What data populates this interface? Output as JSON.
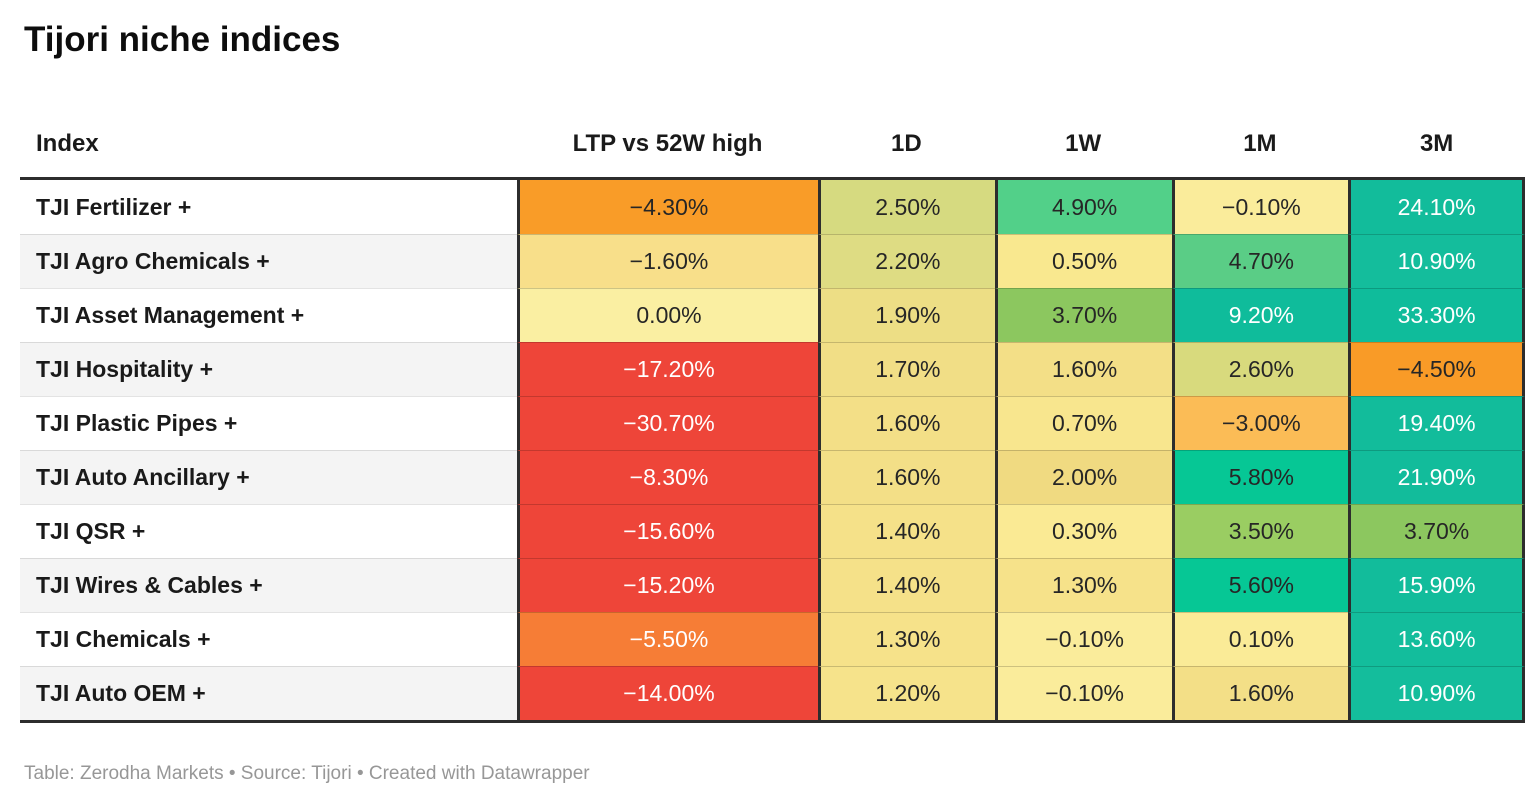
{
  "title": "Tijori niche indices",
  "footer": {
    "text": "Table: Zerodha Markets • Source: Tijori • Created with Datawrapper"
  },
  "style": {
    "zebra_color": "#f4f4f4",
    "row_white": "#ffffff",
    "frame_border_color": "#2d2d2d",
    "footer_text_color": "#979797"
  },
  "table": {
    "columns": [
      "Index",
      "LTP vs 52W high",
      "1D",
      "1W",
      "1M",
      "3M"
    ],
    "rows": [
      {
        "name": "TJI Fertilizer +",
        "cells": [
          {
            "v": "−4.30%",
            "bg": "#F99C28",
            "fg": "#262626"
          },
          {
            "v": "2.50%",
            "bg": "#D6DA80",
            "fg": "#262626"
          },
          {
            "v": "4.90%",
            "bg": "#52D089",
            "fg": "#262626"
          },
          {
            "v": "−0.10%",
            "bg": "#FAEC9B",
            "fg": "#262626"
          },
          {
            "v": "24.10%",
            "bg": "#12BC9B",
            "fg": "#FFFFFF"
          }
        ]
      },
      {
        "name": "TJI Agro Chemicals +",
        "cells": [
          {
            "v": "−1.60%",
            "bg": "#F8DF8A",
            "fg": "#262626"
          },
          {
            "v": "2.20%",
            "bg": "#DEDC83",
            "fg": "#262626"
          },
          {
            "v": "0.50%",
            "bg": "#F9E88F",
            "fg": "#262626"
          },
          {
            "v": "4.70%",
            "bg": "#5ACD86",
            "fg": "#262626"
          },
          {
            "v": "10.90%",
            "bg": "#14BD9C",
            "fg": "#FFFFFF"
          }
        ]
      },
      {
        "name": "TJI Asset Management +",
        "cells": [
          {
            "v": "0.00%",
            "bg": "#FAEFA2",
            "fg": "#262626"
          },
          {
            "v": "1.90%",
            "bg": "#EDDE85",
            "fg": "#262626"
          },
          {
            "v": "3.70%",
            "bg": "#8CC75F",
            "fg": "#262626"
          },
          {
            "v": "9.20%",
            "bg": "#0FBC9B",
            "fg": "#FFFFFF"
          },
          {
            "v": "33.30%",
            "bg": "#0FBC9B",
            "fg": "#FFFFFF"
          }
        ]
      },
      {
        "name": "TJI Hospitality +",
        "cells": [
          {
            "v": "−17.20%",
            "bg": "#EE4539",
            "fg": "#FFFFFF"
          },
          {
            "v": "1.70%",
            "bg": "#F1DE86",
            "fg": "#262626"
          },
          {
            "v": "1.60%",
            "bg": "#F3DF87",
            "fg": "#262626"
          },
          {
            "v": "2.60%",
            "bg": "#D8DA7D",
            "fg": "#262626"
          },
          {
            "v": "−4.50%",
            "bg": "#F99B27",
            "fg": "#262626"
          }
        ]
      },
      {
        "name": "TJI Plastic Pipes +",
        "cells": [
          {
            "v": "−30.70%",
            "bg": "#EE4539",
            "fg": "#FFFFFF"
          },
          {
            "v": "1.60%",
            "bg": "#F3DF87",
            "fg": "#262626"
          },
          {
            "v": "0.70%",
            "bg": "#F8E68E",
            "fg": "#262626"
          },
          {
            "v": "−3.00%",
            "bg": "#FBBC56",
            "fg": "#262626"
          },
          {
            "v": "19.40%",
            "bg": "#12BC9B",
            "fg": "#FFFFFF"
          }
        ]
      },
      {
        "name": "TJI Auto Ancillary +",
        "cells": [
          {
            "v": "−8.30%",
            "bg": "#EE4539",
            "fg": "#FFFFFF"
          },
          {
            "v": "1.60%",
            "bg": "#F3DF87",
            "fg": "#262626"
          },
          {
            "v": "2.00%",
            "bg": "#F0DA81",
            "fg": "#262626"
          },
          {
            "v": "5.80%",
            "bg": "#06C795",
            "fg": "#262626"
          },
          {
            "v": "21.90%",
            "bg": "#12BC9B",
            "fg": "#FFFFFF"
          }
        ]
      },
      {
        "name": "TJI QSR +",
        "cells": [
          {
            "v": "−15.60%",
            "bg": "#EE4539",
            "fg": "#FFFFFF"
          },
          {
            "v": "1.40%",
            "bg": "#F5E189",
            "fg": "#262626"
          },
          {
            "v": "0.30%",
            "bg": "#FAEA94",
            "fg": "#262626"
          },
          {
            "v": "3.50%",
            "bg": "#9ACD62",
            "fg": "#262626"
          },
          {
            "v": "3.70%",
            "bg": "#8CC75F",
            "fg": "#262626"
          }
        ]
      },
      {
        "name": "TJI Wires & Cables +",
        "cells": [
          {
            "v": "−15.20%",
            "bg": "#EE4539",
            "fg": "#FFFFFF"
          },
          {
            "v": "1.40%",
            "bg": "#F5E189",
            "fg": "#262626"
          },
          {
            "v": "1.30%",
            "bg": "#F6E28A",
            "fg": "#262626"
          },
          {
            "v": "5.60%",
            "bg": "#06C795",
            "fg": "#262626"
          },
          {
            "v": "15.90%",
            "bg": "#12BC9B",
            "fg": "#FFFFFF"
          }
        ]
      },
      {
        "name": "TJI Chemicals +",
        "cells": [
          {
            "v": "−5.50%",
            "bg": "#F67D36",
            "fg": "#FFFFFF"
          },
          {
            "v": "1.30%",
            "bg": "#F6E28A",
            "fg": "#262626"
          },
          {
            "v": "−0.10%",
            "bg": "#FAEC9B",
            "fg": "#262626"
          },
          {
            "v": "0.10%",
            "bg": "#FAEB97",
            "fg": "#262626"
          },
          {
            "v": "13.60%",
            "bg": "#13BD9C",
            "fg": "#FFFFFF"
          }
        ]
      },
      {
        "name": "TJI Auto OEM +",
        "cells": [
          {
            "v": "−14.00%",
            "bg": "#EE4539",
            "fg": "#FFFFFF"
          },
          {
            "v": "1.20%",
            "bg": "#F6E38B",
            "fg": "#262626"
          },
          {
            "v": "−0.10%",
            "bg": "#FAEC9B",
            "fg": "#262626"
          },
          {
            "v": "1.60%",
            "bg": "#F3DF87",
            "fg": "#262626"
          },
          {
            "v": "10.90%",
            "bg": "#14BD9C",
            "fg": "#FFFFFF"
          }
        ]
      }
    ]
  },
  "chart_data": {
    "type": "table",
    "title": "Tijori niche indices",
    "columns": [
      "Index",
      "LTP vs 52W high",
      "1D",
      "1W",
      "1M",
      "3M"
    ],
    "units": "percent",
    "rows": [
      [
        "TJI Fertilizer +",
        -4.3,
        2.5,
        4.9,
        -0.1,
        24.1
      ],
      [
        "TJI Agro Chemicals +",
        -1.6,
        2.2,
        0.5,
        4.7,
        10.9
      ],
      [
        "TJI Asset Management +",
        0.0,
        1.9,
        3.7,
        9.2,
        33.3
      ],
      [
        "TJI Hospitality +",
        -17.2,
        1.7,
        1.6,
        2.6,
        -4.5
      ],
      [
        "TJI Plastic Pipes +",
        -30.7,
        1.6,
        0.7,
        -3.0,
        19.4
      ],
      [
        "TJI Auto Ancillary +",
        -8.3,
        1.6,
        2.0,
        5.8,
        21.9
      ],
      [
        "TJI QSR +",
        -15.6,
        1.4,
        0.3,
        3.5,
        3.7
      ],
      [
        "TJI Wires & Cables +",
        -15.2,
        1.4,
        1.3,
        5.6,
        15.9
      ],
      [
        "TJI Chemicals +",
        -5.5,
        1.3,
        -0.1,
        0.1,
        13.6
      ],
      [
        "TJI Auto OEM +",
        -14.0,
        1.2,
        -0.1,
        1.6,
        10.9
      ]
    ],
    "heatmap": true,
    "color_scale_note": "diverging red (#EE4539) → orange (#F99C28) → yellow (#FAEFA2) → yellow-green (#9ACD62) → green (#52D089) → teal (#12BC9B)"
  }
}
